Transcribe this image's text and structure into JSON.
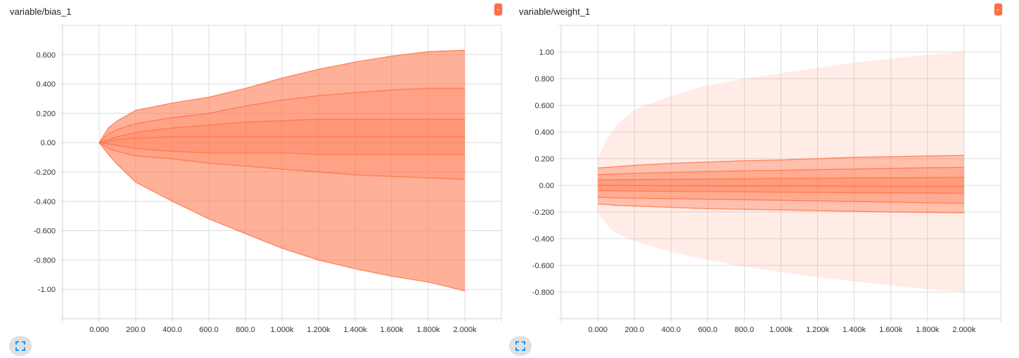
{
  "accent_color": "#ff7043",
  "panels": [
    {
      "title": "variable/bias_1",
      "expand_icon": "fullscreen-icon",
      "chart_data": {
        "type": "area",
        "title": "variable/bias_1",
        "x_ticks": [
          "0.000",
          "200.0",
          "400.0",
          "600.0",
          "800.0",
          "1.000k",
          "1.200k",
          "1.400k",
          "1.600k",
          "1.800k",
          "2.000k"
        ],
        "y_ticks": [
          "0.600",
          "0.400",
          "0.200",
          "0.00",
          "-0.200",
          "-0.400",
          "-0.600",
          "-0.800",
          "-1.00"
        ],
        "y_tick_values": [
          0.6,
          0.4,
          0.2,
          0,
          -0.2,
          -0.4,
          -0.6,
          -0.8,
          -1.0
        ],
        "xlim": [
          -200,
          2200
        ],
        "ylim": [
          -1.2,
          0.8
        ],
        "grid": true,
        "x": [
          0,
          50,
          100,
          200,
          400,
          600,
          800,
          1000,
          1200,
          1400,
          1600,
          1800,
          2000
        ],
        "series": [
          {
            "values": [
              0,
              0.1,
              0.15,
              0.22,
              0.27,
              0.31,
              0.37,
              0.44,
              0.5,
              0.55,
              0.59,
              0.62,
              0.63
            ]
          },
          {
            "values": [
              0,
              0.06,
              0.09,
              0.13,
              0.17,
              0.2,
              0.25,
              0.29,
              0.32,
              0.34,
              0.36,
              0.37,
              0.37
            ]
          },
          {
            "values": [
              0,
              0.02,
              0.04,
              0.07,
              0.1,
              0.12,
              0.14,
              0.15,
              0.16,
              0.16,
              0.16,
              0.16,
              0.16
            ]
          },
          {
            "values": [
              0,
              0.01,
              0.02,
              0.03,
              0.04,
              0.04,
              0.04,
              0.04,
              0.04,
              0.04,
              0.04,
              0.04,
              0.04
            ]
          },
          {
            "values": [
              0,
              -0.01,
              -0.02,
              -0.04,
              -0.06,
              -0.07,
              -0.07,
              -0.07,
              -0.08,
              -0.08,
              -0.08,
              -0.08,
              -0.08
            ]
          },
          {
            "values": [
              0,
              -0.04,
              -0.06,
              -0.09,
              -0.11,
              -0.14,
              -0.16,
              -0.18,
              -0.2,
              -0.22,
              -0.23,
              -0.24,
              -0.25
            ]
          },
          {
            "values": [
              0,
              -0.08,
              -0.15,
              -0.27,
              -0.4,
              -0.52,
              -0.62,
              -0.72,
              -0.8,
              -0.86,
              -0.91,
              -0.95,
              -1.01
            ]
          }
        ]
      }
    },
    {
      "title": "variable/weight_1",
      "expand_icon": "fullscreen-icon",
      "chart_data": {
        "type": "area",
        "title": "variable/weight_1",
        "x_ticks": [
          "0.000",
          "200.0",
          "400.0",
          "600.0",
          "800.0",
          "1.000k",
          "1.200k",
          "1.400k",
          "1.600k",
          "1.800k",
          "2.000k"
        ],
        "y_ticks": [
          "1.00",
          "0.800",
          "0.600",
          "0.400",
          "0.200",
          "0.00",
          "-0.200",
          "-0.400",
          "-0.600",
          "-0.800"
        ],
        "y_tick_values": [
          1.0,
          0.8,
          0.6,
          0.4,
          0.2,
          0,
          -0.2,
          -0.4,
          -0.6,
          -0.8
        ],
        "xlim": [
          -200,
          2200
        ],
        "ylim": [
          -1.0,
          1.2
        ],
        "grid": true,
        "x": [
          0,
          50,
          100,
          200,
          400,
          600,
          800,
          1000,
          1200,
          1400,
          1600,
          1800,
          2000
        ],
        "series": [
          {
            "values": [
              0.2,
              0.35,
              0.45,
              0.57,
              0.67,
              0.75,
              0.8,
              0.84,
              0.88,
              0.92,
              0.95,
              0.98,
              1.0
            ]
          },
          {
            "values": [
              0.13,
              0.135,
              0.14,
              0.15,
              0.165,
              0.175,
              0.185,
              0.19,
              0.2,
              0.21,
              0.215,
              0.22,
              0.225
            ]
          },
          {
            "values": [
              0.08,
              0.082,
              0.085,
              0.09,
              0.097,
              0.103,
              0.108,
              0.112,
              0.118,
              0.122,
              0.127,
              0.132,
              0.135
            ]
          },
          {
            "values": [
              0.04,
              0.041,
              0.042,
              0.043,
              0.045,
              0.047,
              0.049,
              0.051,
              0.053,
              0.055,
              0.057,
              0.058,
              0.06
            ]
          },
          {
            "values": [
              0.0,
              0.0,
              -0.001,
              -0.002,
              -0.003,
              -0.004,
              -0.005,
              -0.006,
              -0.007,
              -0.008,
              -0.009,
              -0.01,
              -0.01
            ]
          },
          {
            "values": [
              -0.04,
              -0.041,
              -0.042,
              -0.043,
              -0.045,
              -0.047,
              -0.049,
              -0.051,
              -0.053,
              -0.055,
              -0.057,
              -0.058,
              -0.06
            ]
          },
          {
            "values": [
              -0.09,
              -0.092,
              -0.094,
              -0.097,
              -0.1,
              -0.104,
              -0.108,
              -0.112,
              -0.117,
              -0.121,
              -0.126,
              -0.131,
              -0.135
            ]
          },
          {
            "values": [
              -0.14,
              -0.145,
              -0.15,
              -0.155,
              -0.165,
              -0.175,
              -0.18,
              -0.185,
              -0.19,
              -0.195,
              -0.2,
              -0.203,
              -0.205
            ]
          },
          {
            "values": [
              -0.2,
              -0.3,
              -0.36,
              -0.42,
              -0.5,
              -0.56,
              -0.61,
              -0.65,
              -0.69,
              -0.72,
              -0.75,
              -0.78,
              -0.8
            ]
          }
        ]
      }
    }
  ]
}
